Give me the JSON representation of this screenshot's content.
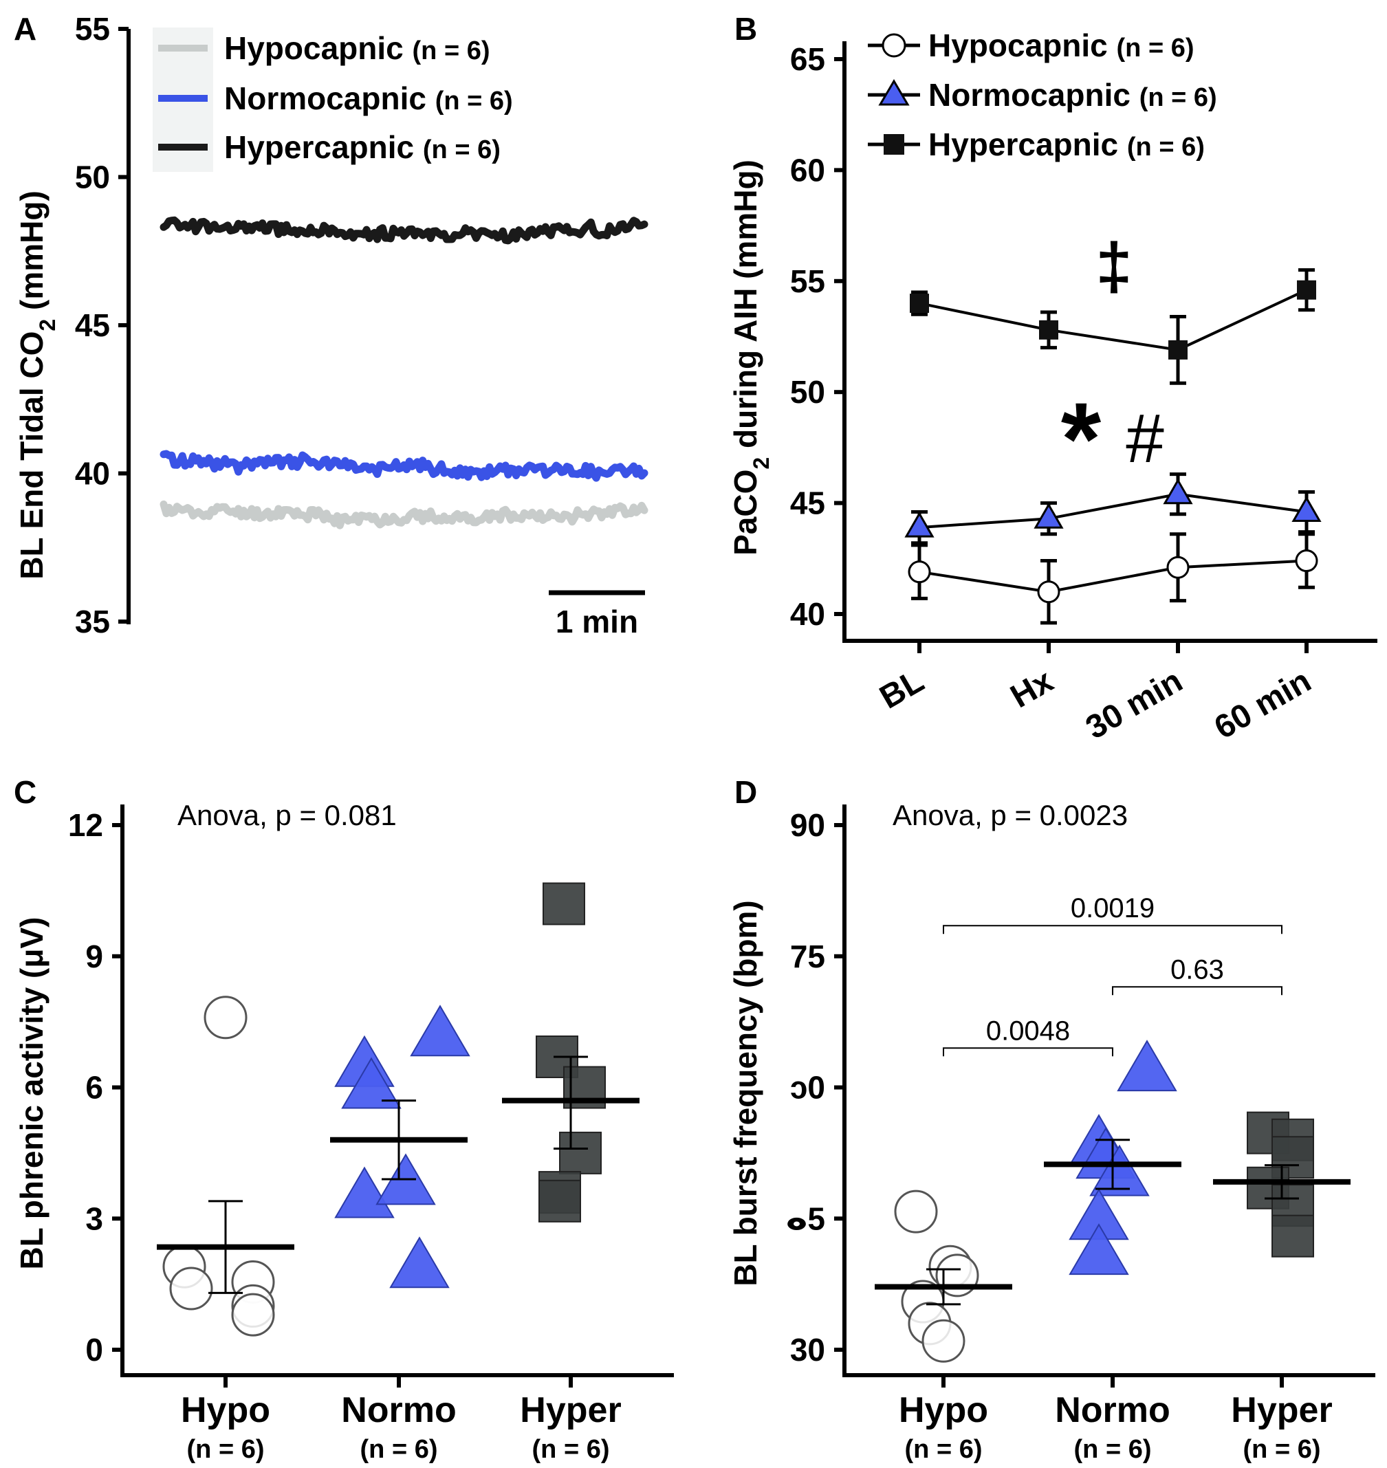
{
  "colors": {
    "hypo": "#c8cccb",
    "normo": "#3a53e6",
    "hyper": "#1a1a1a",
    "hyper_marker": "#3b3f3f",
    "normo_marker": "#4a5ef0"
  },
  "chart_data": [
    {
      "panel": "A",
      "type": "line",
      "title": "",
      "xlabel": "",
      "ylabel": "BL End Tidal CO",
      "ylabel_sub": "2",
      "ylabel_unit": " (mmHg)",
      "ylim": [
        35,
        55
      ],
      "yticks": [
        "35",
        "40",
        "45",
        "50",
        "55"
      ],
      "scale_bar_label": "1 min",
      "legend_placement": "top-left",
      "series": [
        {
          "name": "Hypocapnic",
          "n_label": "(n = 6)",
          "mean": 38.6,
          "start": 38.8,
          "end": 38.8
        },
        {
          "name": "Normocapnic",
          "n_label": "(n = 6)",
          "mean": 40.2,
          "start": 40.5,
          "end": 40.0
        },
        {
          "name": "Hypercapnic",
          "n_label": "(n = 6)",
          "mean": 48.2,
          "start": 48.5,
          "end": 48.3
        }
      ]
    },
    {
      "panel": "B",
      "type": "line",
      "xlabel": "",
      "ylabel_pre": "PaCO",
      "ylabel_sub": "2",
      "ylabel_post": " during AIH (mmHg)",
      "ylim": [
        39.5,
        65
      ],
      "yticks": [
        "40",
        "45",
        "50",
        "55",
        "60",
        "65"
      ],
      "categories": [
        "BL",
        "Hx",
        "30 min",
        "60 min"
      ],
      "legend_placement": "top-left",
      "series": [
        {
          "name": "Hypocapnic",
          "n_label": "(n = 6)",
          "values": [
            41.9,
            41.0,
            42.1,
            42.4
          ],
          "errors": [
            1.2,
            1.4,
            1.5,
            1.2
          ]
        },
        {
          "name": "Normocapnic",
          "n_label": "(n = 6)",
          "values": [
            43.9,
            44.3,
            45.4,
            44.6
          ],
          "errors": [
            0.7,
            0.7,
            0.9,
            0.9
          ]
        },
        {
          "name": "Hypercapnic",
          "n_label": "(n = 6)",
          "values": [
            54.0,
            52.8,
            51.9,
            54.6
          ],
          "errors": [
            0.5,
            0.8,
            1.5,
            0.9
          ]
        }
      ],
      "annotations": [
        "‡",
        "*",
        "#"
      ]
    },
    {
      "panel": "C",
      "type": "scatter",
      "ylabel": "BL phrenic activity (μV)",
      "ylim": [
        0,
        12.3
      ],
      "yticks": [
        "0",
        "3",
        "6",
        "9",
        "12"
      ],
      "stat_label": "Anova, p = 0.081",
      "categories": [
        "Hypo",
        "Normo",
        "Hyper"
      ],
      "category_n": [
        "(n = 6)",
        "(n = 6)",
        "(n = 6)"
      ],
      "groups": [
        {
          "name": "Hypo",
          "points": [
            7.6,
            1.9,
            1.4,
            1.55,
            1.0,
            0.8
          ],
          "offsets": [
            0.0,
            -0.3,
            -0.25,
            0.2,
            0.2,
            0.2
          ],
          "mean": 2.35,
          "sem_low": 1.3,
          "sem_high": 3.4
        },
        {
          "name": "Normo",
          "points": [
            6.5,
            6.0,
            7.2,
            3.5,
            3.8,
            1.9
          ],
          "offsets": [
            -0.25,
            -0.2,
            0.3,
            -0.25,
            0.05,
            0.15
          ],
          "mean": 4.8,
          "sem_low": 3.9,
          "sem_high": 5.7
        },
        {
          "name": "Hyper",
          "points": [
            10.2,
            6.7,
            6.0,
            4.5,
            3.6,
            3.4
          ],
          "offsets": [
            -0.05,
            -0.1,
            0.1,
            0.07,
            -0.08,
            -0.08
          ],
          "mean": 5.7,
          "sem_low": 4.6,
          "sem_high": 6.7
        }
      ]
    },
    {
      "panel": "D",
      "type": "scatter",
      "ylabel": "BL burst frequency (bpm)",
      "ylim": [
        30,
        92
      ],
      "yticks": [
        "30",
        "45",
        "60",
        "75",
        "90"
      ],
      "yticks_display": [
        "30",
        "ⴰ5",
        "ɔ0",
        "75",
        "90"
      ],
      "stat_label": "Anova, p = 0.0023",
      "categories": [
        "Hypo",
        "Normo",
        "Hyper"
      ],
      "category_n": [
        "(n = 6)",
        "(n = 6)",
        "(n = 6)"
      ],
      "groups": [
        {
          "name": "Hypo",
          "points": [
            45.8,
            39.5,
            38.5,
            35.5,
            33.0,
            31.0
          ],
          "offsets": [
            -0.2,
            0.05,
            0.1,
            -0.15,
            -0.1,
            0.0
          ],
          "mean": 37.2,
          "sem_low": 35.2,
          "sem_high": 39.2
        },
        {
          "name": "Normo",
          "points": [
            62.0,
            53.5,
            52.0,
            50.0,
            45.0,
            41.0
          ],
          "offsets": [
            0.25,
            -0.1,
            -0.05,
            0.05,
            -0.1,
            -0.1
          ],
          "mean": 51.2,
          "sem_low": 48.4,
          "sem_high": 54.0
        },
        {
          "name": "Hyper",
          "points": [
            54.8,
            54.0,
            52.0,
            48.5,
            46.5,
            43.0
          ],
          "offsets": [
            -0.1,
            0.08,
            0.08,
            -0.1,
            0.08,
            0.08
          ],
          "mean": 49.2,
          "sem_low": 47.3,
          "sem_high": 51.1
        }
      ],
      "comparisons": [
        {
          "from": 0,
          "to": 2,
          "label": "0.0019",
          "y": 78.5
        },
        {
          "from": 1,
          "to": 2,
          "label": "0.63",
          "y": 71.5
        },
        {
          "from": 0,
          "to": 1,
          "label": "0.0048",
          "y": 64.5
        }
      ]
    }
  ]
}
